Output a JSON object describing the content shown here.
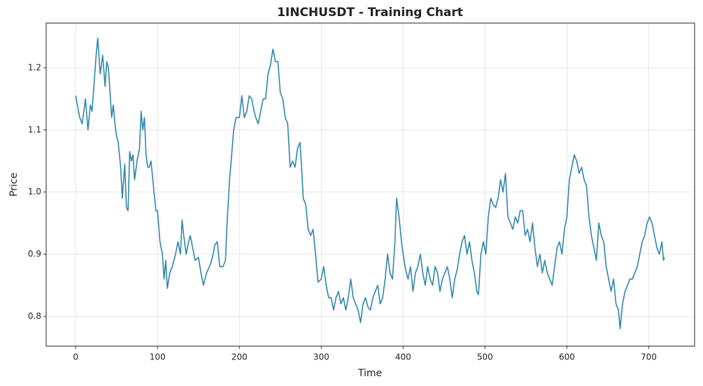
{
  "chart_data": {
    "type": "line",
    "title": "1INCHUSDT - Training Chart",
    "x_label": "Time",
    "y_label": "Price",
    "x": [
      0,
      5,
      8,
      10,
      12,
      15,
      18,
      20,
      22,
      25,
      27,
      30,
      33,
      36,
      38,
      40,
      42,
      44,
      46,
      48,
      50,
      52,
      55,
      57,
      60,
      62,
      64,
      66,
      68,
      70,
      72,
      75,
      78,
      80,
      82,
      84,
      86,
      88,
      90,
      92,
      95,
      98,
      100,
      103,
      106,
      108,
      110,
      112,
      115,
      118,
      122,
      125,
      128,
      130,
      132,
      135,
      138,
      140,
      143,
      146,
      150,
      153,
      156,
      160,
      165,
      168,
      170,
      173,
      176,
      180,
      183,
      185,
      188,
      190,
      193,
      196,
      200,
      203,
      206,
      209,
      212,
      215,
      218,
      220,
      223,
      226,
      229,
      232,
      235,
      238,
      241,
      244,
      247,
      250,
      253,
      256,
      259,
      262,
      265,
      268,
      271,
      274,
      276,
      278,
      281,
      284,
      287,
      290,
      293,
      296,
      300,
      303,
      306,
      309,
      312,
      315,
      318,
      321,
      324,
      327,
      330,
      333,
      336,
      339,
      342,
      345,
      348,
      351,
      354,
      357,
      360,
      363,
      366,
      369,
      372,
      375,
      378,
      381,
      384,
      387,
      390,
      392,
      395,
      398,
      400,
      403,
      406,
      409,
      412,
      415,
      418,
      421,
      424,
      427,
      430,
      433,
      436,
      439,
      442,
      445,
      448,
      451,
      454,
      457,
      460,
      463,
      466,
      469,
      472,
      475,
      478,
      481,
      484,
      487,
      490,
      492,
      495,
      498,
      501,
      504,
      507,
      510,
      513,
      516,
      519,
      522,
      525,
      528,
      531,
      534,
      537,
      540,
      543,
      546,
      549,
      552,
      555,
      558,
      561,
      564,
      567,
      570,
      573,
      576,
      579,
      582,
      585,
      588,
      591,
      594,
      597,
      600,
      603,
      606,
      609,
      612,
      615,
      618,
      621,
      624,
      627,
      630,
      633,
      636,
      639,
      642,
      645,
      648,
      651,
      654,
      657,
      660,
      663,
      665,
      668,
      671,
      674,
      677,
      680,
      683,
      686,
      689,
      692,
      695,
      698,
      701,
      704,
      707,
      710,
      713,
      716,
      718,
      719
    ],
    "series": [
      {
        "name": "Price",
        "color": "#2e86ab",
        "values": [
          1.155,
          1.12,
          1.11,
          1.13,
          1.15,
          1.1,
          1.14,
          1.13,
          1.165,
          1.22,
          1.248,
          1.19,
          1.22,
          1.17,
          1.21,
          1.2,
          1.16,
          1.12,
          1.14,
          1.11,
          1.09,
          1.08,
          1.04,
          0.99,
          1.045,
          0.975,
          0.97,
          1.065,
          1.05,
          1.06,
          1.02,
          1.05,
          1.07,
          1.13,
          1.1,
          1.12,
          1.06,
          1.04,
          1.04,
          1.05,
          1.01,
          0.97,
          0.97,
          0.92,
          0.9,
          0.86,
          0.89,
          0.845,
          0.87,
          0.88,
          0.9,
          0.92,
          0.9,
          0.955,
          0.93,
          0.9,
          0.92,
          0.93,
          0.91,
          0.89,
          0.895,
          0.87,
          0.85,
          0.87,
          0.885,
          0.9,
          0.915,
          0.92,
          0.88,
          0.88,
          0.89,
          0.95,
          1.02,
          1.05,
          1.1,
          1.12,
          1.12,
          1.155,
          1.12,
          1.13,
          1.155,
          1.15,
          1.13,
          1.12,
          1.11,
          1.13,
          1.15,
          1.15,
          1.19,
          1.205,
          1.23,
          1.21,
          1.21,
          1.16,
          1.15,
          1.12,
          1.11,
          1.04,
          1.05,
          1.04,
          1.07,
          1.08,
          1.04,
          0.99,
          0.98,
          0.94,
          0.93,
          0.94,
          0.9,
          0.855,
          0.86,
          0.88,
          0.85,
          0.83,
          0.83,
          0.81,
          0.83,
          0.84,
          0.82,
          0.83,
          0.81,
          0.83,
          0.86,
          0.83,
          0.82,
          0.81,
          0.79,
          0.82,
          0.83,
          0.815,
          0.81,
          0.83,
          0.84,
          0.85,
          0.82,
          0.83,
          0.86,
          0.9,
          0.87,
          0.86,
          0.92,
          0.99,
          0.96,
          0.92,
          0.9,
          0.875,
          0.86,
          0.88,
          0.84,
          0.87,
          0.88,
          0.9,
          0.87,
          0.85,
          0.88,
          0.86,
          0.85,
          0.88,
          0.87,
          0.84,
          0.86,
          0.87,
          0.88,
          0.86,
          0.83,
          0.86,
          0.875,
          0.9,
          0.92,
          0.93,
          0.9,
          0.92,
          0.89,
          0.87,
          0.84,
          0.835,
          0.9,
          0.92,
          0.9,
          0.96,
          0.99,
          0.98,
          0.975,
          0.99,
          1.02,
          1.0,
          1.03,
          0.96,
          0.95,
          0.94,
          0.96,
          0.95,
          0.97,
          0.97,
          0.93,
          0.94,
          0.92,
          0.95,
          0.91,
          0.88,
          0.9,
          0.87,
          0.89,
          0.87,
          0.86,
          0.85,
          0.88,
          0.91,
          0.92,
          0.9,
          0.94,
          0.96,
          1.02,
          1.04,
          1.06,
          1.05,
          1.03,
          1.04,
          1.02,
          1.01,
          0.96,
          0.93,
          0.91,
          0.89,
          0.95,
          0.93,
          0.92,
          0.88,
          0.86,
          0.84,
          0.86,
          0.82,
          0.81,
          0.78,
          0.82,
          0.84,
          0.85,
          0.86,
          0.86,
          0.87,
          0.88,
          0.9,
          0.92,
          0.93,
          0.95,
          0.96,
          0.95,
          0.93,
          0.91,
          0.9,
          0.92,
          0.89,
          0.895
        ]
      }
    ],
    "xlim": [
      -36,
      756
    ],
    "ylim": [
      0.752,
      1.272
    ],
    "xticks": [
      0,
      100,
      200,
      300,
      400,
      500,
      600,
      700
    ],
    "yticks": [
      0.8,
      0.9,
      {
        "value": 1,
        "label": "1.0"
      },
      1.1,
      1.2
    ],
    "grid": true
  }
}
